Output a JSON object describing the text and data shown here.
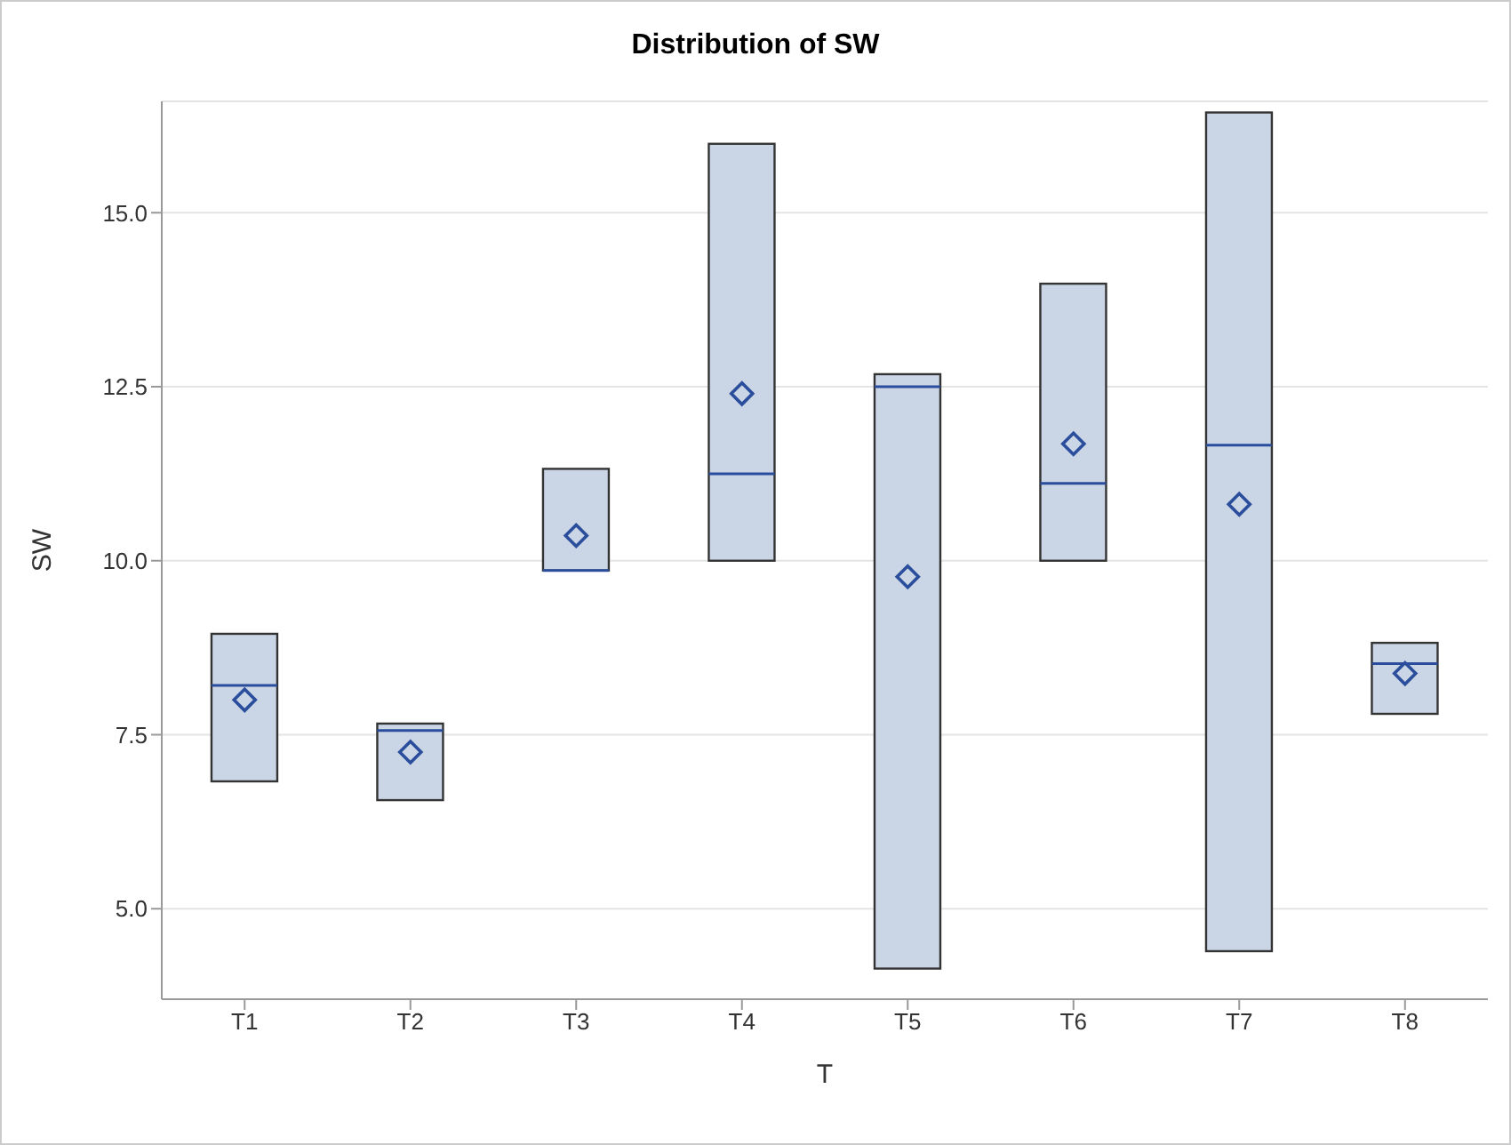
{
  "chart_data": {
    "type": "box",
    "title": "Distribution of SW",
    "xlabel": "T",
    "ylabel": "SW",
    "categories": [
      "T1",
      "T2",
      "T3",
      "T4",
      "T5",
      "T6",
      "T7",
      "T8"
    ],
    "color": "#cad5e5",
    "boxes": [
      {
        "low": 6.83,
        "q1": 6.83,
        "median": 8.21,
        "q3": 8.95,
        "high": 8.95,
        "mean": 8.0
      },
      {
        "low": 6.56,
        "q1": 6.56,
        "median": 7.56,
        "q3": 7.66,
        "high": 7.66,
        "mean": 7.25
      },
      {
        "low": 9.86,
        "q1": 9.86,
        "median": 9.86,
        "q3": 11.32,
        "high": 11.32,
        "mean": 10.36
      },
      {
        "low": 10.0,
        "q1": 10.0,
        "median": 11.25,
        "q3": 15.99,
        "high": 15.99,
        "mean": 12.4
      },
      {
        "low": 4.14,
        "q1": 4.14,
        "median": 12.5,
        "q3": 12.68,
        "high": 12.68,
        "mean": 9.77
      },
      {
        "low": 10.0,
        "q1": 10.0,
        "median": 11.11,
        "q3": 13.98,
        "high": 13.98,
        "mean": 11.68
      },
      {
        "low": 4.39,
        "q1": 4.39,
        "median": 11.66,
        "q3": 16.44,
        "high": 16.44,
        "mean": 10.81
      },
      {
        "low": 7.8,
        "q1": 7.8,
        "median": 8.52,
        "q3": 8.82,
        "high": 8.82,
        "mean": 8.38
      }
    ],
    "ylim": [
      3.7,
      16.6
    ],
    "yticks": [
      {
        "value": 5,
        "label": "5.0"
      },
      {
        "value": 7.5,
        "label": "7.5"
      },
      {
        "value": 10,
        "label": "10.0"
      },
      {
        "value": 12.5,
        "label": "12.5"
      },
      {
        "value": 15,
        "label": "15.0"
      }
    ],
    "grid": "y",
    "marker": "diamond"
  }
}
